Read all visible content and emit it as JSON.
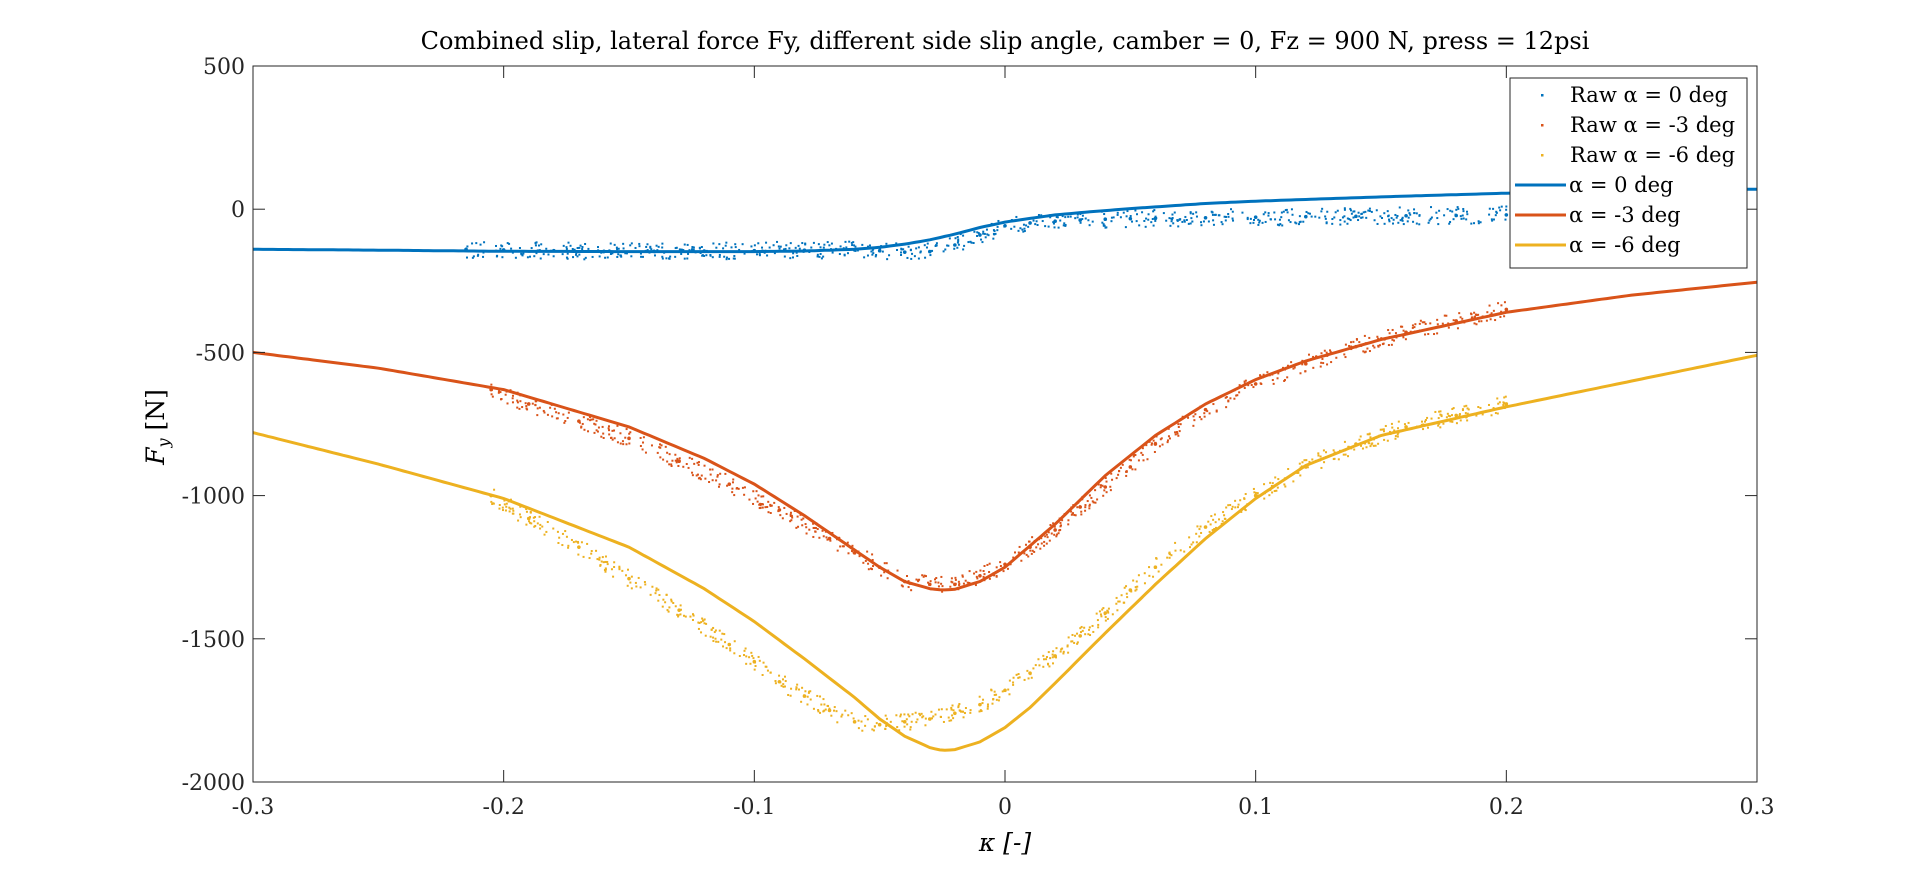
{
  "chart_data": {
    "type": "scatter",
    "title": "Combined slip, lateral force Fy, different side slip angle, camber = 0, Fz = 900 N, press = 12psi",
    "xlabel": "κ [-]",
    "ylabel": "F_y [N]",
    "ylabel_main": "F",
    "ylabel_sub": "y",
    "ylabel_unit": " [N]",
    "xlim": [
      -0.3,
      0.3
    ],
    "ylim": [
      -2000,
      500
    ],
    "xticks": [
      -0.3,
      -0.2,
      -0.1,
      0,
      0.1,
      0.2,
      0.3
    ],
    "xtick_labels": [
      "-0.3",
      "-0.2",
      "-0.1",
      "0",
      "0.1",
      "0.2",
      "0.3"
    ],
    "yticks": [
      500,
      0,
      -500,
      -1000,
      -1500,
      -2000
    ],
    "ytick_labels": [
      "500",
      "0",
      "-500",
      "-1000",
      "-1500",
      "-2000"
    ],
    "grid": false,
    "legend_position": "top-right",
    "legend": [
      {
        "label": "Raw α = 0 deg",
        "style": "dots",
        "color": "#0072BD"
      },
      {
        "label": "Raw α = -3 deg",
        "style": "dots",
        "color": "#D95319"
      },
      {
        "label": "Raw α = -6 deg",
        "style": "dots",
        "color": "#EDB120"
      },
      {
        "label": "α = 0 deg",
        "style": "line",
        "color": "#0072BD"
      },
      {
        "label": "α = -3 deg",
        "style": "line",
        "color": "#D95319"
      },
      {
        "label": "α = -6 deg",
        "style": "line",
        "color": "#EDB120"
      }
    ],
    "series": [
      {
        "name": "α = 0 deg",
        "kind": "line",
        "color": "#0072BD",
        "x": [
          -0.3,
          -0.25,
          -0.2,
          -0.15,
          -0.1,
          -0.08,
          -0.06,
          -0.05,
          -0.04,
          -0.03,
          -0.02,
          -0.01,
          0,
          0.01,
          0.02,
          0.03,
          0.05,
          0.08,
          0.1,
          0.15,
          0.2,
          0.25,
          0.3
        ],
        "y": [
          -140,
          -143,
          -147,
          -148,
          -148,
          -146,
          -140,
          -133,
          -122,
          -107,
          -87,
          -64,
          -45,
          -32,
          -20,
          -12,
          2,
          20,
          28,
          43,
          56,
          65,
          70
        ]
      },
      {
        "name": "α = -3 deg",
        "kind": "line",
        "color": "#D95319",
        "x": [
          -0.3,
          -0.25,
          -0.2,
          -0.15,
          -0.12,
          -0.1,
          -0.08,
          -0.06,
          -0.05,
          -0.04,
          -0.03,
          -0.025,
          -0.02,
          -0.01,
          0,
          0.01,
          0.02,
          0.04,
          0.06,
          0.08,
          0.1,
          0.12,
          0.15,
          0.2,
          0.25,
          0.3
        ],
        "y": [
          -500,
          -555,
          -630,
          -760,
          -870,
          -960,
          -1070,
          -1190,
          -1250,
          -1300,
          -1325,
          -1330,
          -1327,
          -1300,
          -1250,
          -1175,
          -1100,
          -930,
          -790,
          -680,
          -595,
          -530,
          -455,
          -360,
          -300,
          -255
        ]
      },
      {
        "name": "α = -6 deg",
        "kind": "line",
        "color": "#EDB120",
        "x": [
          -0.3,
          -0.25,
          -0.2,
          -0.15,
          -0.12,
          -0.1,
          -0.08,
          -0.06,
          -0.05,
          -0.04,
          -0.03,
          -0.025,
          -0.02,
          -0.01,
          0,
          0.01,
          0.02,
          0.04,
          0.06,
          0.08,
          0.1,
          0.12,
          0.15,
          0.2,
          0.25,
          0.3
        ],
        "y": [
          -780,
          -890,
          -1010,
          -1180,
          -1325,
          -1440,
          -1570,
          -1705,
          -1780,
          -1840,
          -1880,
          -1890,
          -1887,
          -1860,
          -1810,
          -1740,
          -1655,
          -1480,
          -1310,
          -1150,
          -1010,
          -895,
          -790,
          -690,
          -600,
          -510
        ]
      },
      {
        "name": "Raw α = 0 deg",
        "kind": "dots",
        "color": "#0072BD",
        "x": [
          -0.215,
          -0.2,
          -0.18,
          -0.16,
          -0.14,
          -0.12,
          -0.1,
          -0.08,
          -0.06,
          -0.05,
          -0.04,
          -0.03,
          -0.02,
          -0.01,
          0,
          0.01,
          0.02,
          0.03,
          0.04,
          0.05,
          0.06,
          0.08,
          0.1,
          0.12,
          0.14,
          0.16,
          0.18,
          0.2
        ],
        "y": [
          -140,
          -142,
          -145,
          -147,
          -147,
          -146,
          -145,
          -143,
          -142,
          -145,
          -150,
          -148,
          -125,
          -90,
          -58,
          -48,
          -42,
          -38,
          -35,
          -33,
          -32,
          -30,
          -28,
          -26,
          -25,
          -23,
          -22,
          -20
        ]
      },
      {
        "name": "Raw α = -3 deg",
        "kind": "dots",
        "color": "#D95319",
        "x": [
          -0.205,
          -0.19,
          -0.17,
          -0.15,
          -0.13,
          -0.11,
          -0.09,
          -0.07,
          -0.06,
          -0.05,
          -0.04,
          -0.03,
          -0.02,
          -0.01,
          0,
          0.01,
          0.02,
          0.03,
          0.04,
          0.05,
          0.06,
          0.08,
          0.1,
          0.12,
          0.14,
          0.16,
          0.18,
          0.2
        ],
        "y": [
          -630,
          -680,
          -740,
          -800,
          -880,
          -960,
          -1050,
          -1150,
          -1200,
          -1250,
          -1300,
          -1310,
          -1310,
          -1280,
          -1240,
          -1180,
          -1120,
          -1040,
          -970,
          -900,
          -820,
          -700,
          -610,
          -540,
          -480,
          -430,
          -390,
          -350
        ]
      },
      {
        "name": "Raw α = -6 deg",
        "kind": "dots",
        "color": "#EDB120",
        "x": [
          -0.205,
          -0.19,
          -0.17,
          -0.15,
          -0.13,
          -0.11,
          -0.1,
          -0.09,
          -0.08,
          -0.07,
          -0.06,
          -0.05,
          -0.04,
          -0.03,
          -0.02,
          -0.01,
          0,
          0.01,
          0.02,
          0.03,
          0.04,
          0.05,
          0.06,
          0.08,
          0.1,
          0.12,
          0.14,
          0.16,
          0.18,
          0.2
        ],
        "y": [
          -1000,
          -1080,
          -1180,
          -1290,
          -1400,
          -1520,
          -1580,
          -1650,
          -1700,
          -1750,
          -1790,
          -1800,
          -1790,
          -1780,
          -1760,
          -1730,
          -1680,
          -1620,
          -1560,
          -1490,
          -1410,
          -1330,
          -1250,
          -1110,
          -1000,
          -900,
          -820,
          -760,
          -720,
          -680
        ]
      }
    ]
  }
}
